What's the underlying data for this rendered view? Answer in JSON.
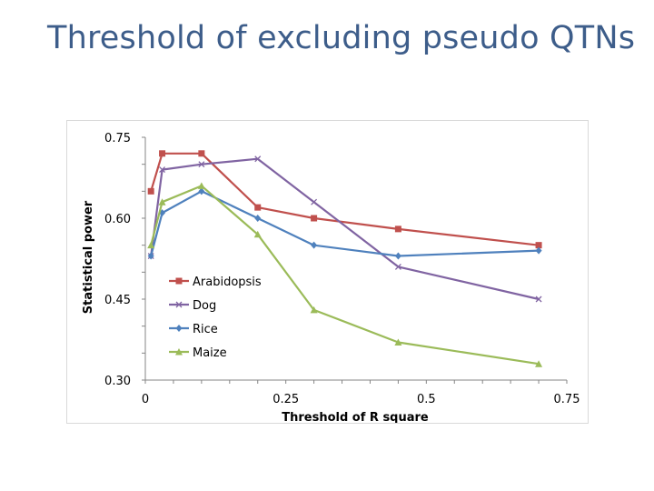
{
  "slide": {
    "title": "Threshold of excluding pseudo QTNs"
  },
  "chart_data": {
    "type": "line",
    "title": "",
    "xlabel": "Threshold of R square",
    "ylabel": "Statistical power",
    "xlim": [
      0,
      0.75
    ],
    "ylim": [
      0.3,
      0.75
    ],
    "x_ticks": [
      "0",
      "0.25",
      "0.5",
      "0.75"
    ],
    "x_tick_values": [
      0,
      0.25,
      0.5,
      0.75
    ],
    "y_ticks": [
      "0.30",
      "0.45",
      "0.60",
      "0.75"
    ],
    "y_tick_values": [
      0.3,
      0.45,
      0.6,
      0.75
    ],
    "grid": false,
    "legend_position": "center-left",
    "x": [
      0.01,
      0.03,
      0.1,
      0.2,
      0.3,
      0.45,
      0.7
    ],
    "series": [
      {
        "name": "Arabidopsis",
        "color": "#c0504d",
        "marker": "square",
        "values": [
          0.65,
          0.72,
          0.72,
          0.62,
          0.6,
          0.58,
          0.55
        ]
      },
      {
        "name": "Dog",
        "color": "#8064a2",
        "marker": "x",
        "values": [
          0.53,
          0.69,
          0.7,
          0.71,
          0.63,
          0.51,
          0.45
        ]
      },
      {
        "name": "Rice",
        "color": "#4f81bd",
        "marker": "diamond",
        "values": [
          0.53,
          0.61,
          0.65,
          0.6,
          0.55,
          0.53,
          0.54
        ]
      },
      {
        "name": "Maize",
        "color": "#9bbb59",
        "marker": "triangle",
        "values": [
          0.55,
          0.63,
          0.66,
          0.57,
          0.43,
          0.37,
          0.33
        ]
      }
    ]
  }
}
